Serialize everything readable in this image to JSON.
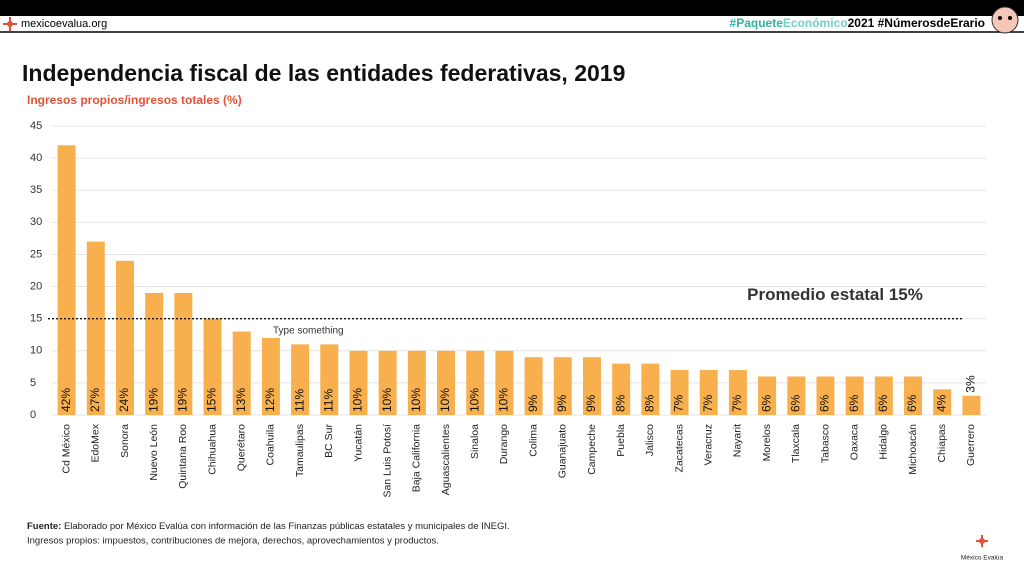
{
  "header": {
    "site": "mexicoevalua.org",
    "hashtag_parts": [
      "#Paquete",
      "Económico",
      "2021 #NúmerosdeErario"
    ]
  },
  "chart_data": {
    "type": "bar",
    "title": "Independencia fiscal de las entidades federativas, 2019",
    "y_label": "Ingresos propios/ingresos totales (%)",
    "categories": [
      "Cd México",
      "EdoMex",
      "Sonora",
      "Nuevo León",
      "Quintana Roo",
      "Chihuahua",
      "Querétaro",
      "Coahuila",
      "Tamaulipas",
      "BC Sur",
      "Yucatán",
      "San Luis Potosí",
      "Baja California",
      "Aguascalientes",
      "Sinaloa",
      "Durango",
      "Colima",
      "Guanajuato",
      "Campeche",
      "Puebla",
      "Jalisco",
      "Zacatecas",
      "Veracruz",
      "Nayarit",
      "Morelos",
      "Tlaxcala",
      "Tabasco",
      "Oaxaca",
      "Hidalgo",
      "Michoacán",
      "Chiapas",
      "Guerrero"
    ],
    "values": [
      42,
      27,
      24,
      19,
      19,
      15,
      13,
      12,
      11,
      11,
      10,
      10,
      10,
      10,
      10,
      10,
      9,
      9,
      9,
      8,
      8,
      7,
      7,
      7,
      6,
      6,
      6,
      6,
      6,
      6,
      4,
      3
    ],
    "value_labels": [
      "42%",
      "27%",
      "24%",
      "19%",
      "19%",
      "15%",
      "13%",
      "12%",
      "11%",
      "11%",
      "10%",
      "10%",
      "10%",
      "10%",
      "10%",
      "10%",
      "9%",
      "9%",
      "9%",
      "8%",
      "8%",
      "7%",
      "7%",
      "7%",
      "6%",
      "6%",
      "6%",
      "6%",
      "6%",
      "6%",
      "4%",
      "3%"
    ],
    "color": "#f8b04e",
    "ylim": [
      0,
      45
    ],
    "yticks": [
      0,
      5,
      10,
      15,
      20,
      25,
      30,
      35,
      40,
      45
    ],
    "grid": true,
    "reference_line": {
      "value": 15,
      "label": "Promedio estatal 15%"
    },
    "annotation": "Type something"
  },
  "footer": {
    "source_label": "Fuente:",
    "source_text": "Elaborado por México Evalúa con información de las Finanzas públicas estatales y municipales de INEGI.",
    "note": "Ingresos propios: impuestos, contribuciones de mejora, derechos, aprovechamientos y productos.",
    "logo": "México Evalúa"
  }
}
